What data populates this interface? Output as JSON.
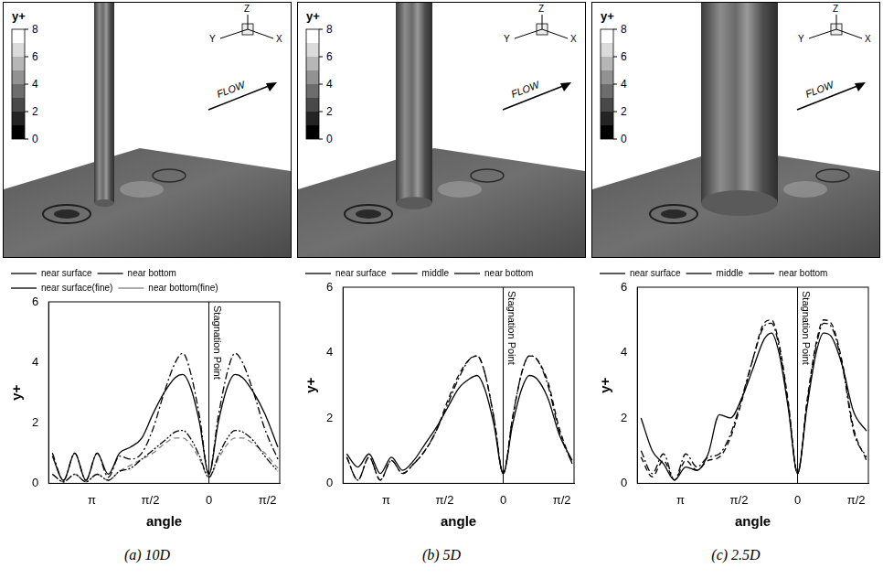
{
  "captions": [
    "(a) 10D",
    "(b) 5D",
    "(c) 2.5D"
  ],
  "contour_panels": [
    {
      "colorbar_title": "y+",
      "colorbar_range": [
        0,
        8
      ],
      "colorbar_ticks": [
        0,
        2,
        4,
        6,
        8
      ],
      "axis_labels": {
        "x": "X",
        "y": "Y",
        "z": "Z"
      },
      "flow_label": "FLOW"
    },
    {
      "colorbar_title": "y+",
      "colorbar_range": [
        0,
        8
      ],
      "colorbar_ticks": [
        0,
        2,
        4,
        6,
        8
      ],
      "axis_labels": {
        "x": "X",
        "y": "Y",
        "z": "Z"
      },
      "flow_label": "FLOW"
    },
    {
      "colorbar_title": "y+",
      "colorbar_range": [
        0,
        8
      ],
      "colorbar_ticks": [
        0,
        2,
        4,
        6,
        8
      ],
      "axis_labels": {
        "x": "X",
        "y": "Y",
        "z": "Z"
      },
      "flow_label": "FLOW"
    }
  ],
  "chart_data": [
    {
      "type": "line",
      "x_label": "angle",
      "y_label": "y+",
      "x": [
        -4.2,
        -3.9,
        -3.6,
        -3.3,
        -3.0,
        -2.7,
        -2.4,
        -2.1,
        -1.8,
        -1.5,
        -1.2,
        -0.9,
        -0.7,
        -0.5,
        -0.25,
        0,
        0.25,
        0.5,
        0.7,
        0.9,
        1.2,
        1.5,
        1.85
      ],
      "xlim": [
        -4.3,
        1.9
      ],
      "xticks": [
        {
          "value": -3.1416,
          "label": "π"
        },
        {
          "value": -1.5708,
          "label": "π/2"
        },
        0,
        {
          "value": 1.5708,
          "label": "π/2"
        }
      ],
      "ylim": [
        0,
        6
      ],
      "yticks": [
        0,
        2,
        4,
        6
      ],
      "grid": false,
      "legend": "top",
      "annotations": [
        {
          "x": 0,
          "text": "Stagnation Point"
        }
      ],
      "series": [
        {
          "name": "near surface",
          "color": "#000000",
          "line_style": "dashdot",
          "values": [
            1.0,
            0.1,
            1.0,
            0.1,
            1.0,
            0.2,
            0.9,
            0.8,
            1.0,
            1.8,
            3.0,
            4.0,
            4.3,
            3.7,
            2.2,
            0.3,
            2.2,
            3.7,
            4.3,
            4.0,
            3.0,
            1.8,
            0.8
          ]
        },
        {
          "name": "near bottom",
          "color": "#000000",
          "line_style": "solid",
          "values": [
            0.9,
            0.1,
            1.0,
            0.1,
            1.0,
            0.3,
            1.0,
            1.2,
            1.5,
            2.3,
            3.0,
            3.5,
            3.6,
            3.2,
            2.0,
            0.3,
            2.0,
            3.2,
            3.6,
            3.5,
            3.0,
            2.3,
            1.2
          ]
        },
        {
          "name": "near surface(fine)",
          "color": "#000000",
          "line_style": "dashdotdot",
          "values": [
            0.3,
            0.05,
            0.3,
            0.05,
            0.3,
            0.1,
            0.4,
            0.5,
            0.8,
            1.1,
            1.4,
            1.7,
            1.75,
            1.5,
            0.9,
            0.2,
            0.9,
            1.5,
            1.75,
            1.7,
            1.4,
            0.9,
            0.4
          ]
        },
        {
          "name": "near bottom(fine)",
          "color": "#808080",
          "line_style": "dashed",
          "values": [
            0.3,
            0.05,
            0.3,
            0.05,
            0.3,
            0.1,
            0.4,
            0.6,
            0.8,
            1.0,
            1.3,
            1.5,
            1.5,
            1.3,
            0.8,
            0.2,
            0.8,
            1.3,
            1.5,
            1.5,
            1.3,
            1.0,
            0.5
          ]
        }
      ]
    },
    {
      "type": "line",
      "x_label": "angle",
      "y_label": "y+",
      "x": [
        -4.2,
        -3.9,
        -3.6,
        -3.3,
        -3.0,
        -2.7,
        -2.4,
        -2.1,
        -1.8,
        -1.5,
        -1.2,
        -0.9,
        -0.7,
        -0.5,
        -0.25,
        0,
        0.25,
        0.5,
        0.7,
        0.9,
        1.2,
        1.5,
        1.85
      ],
      "xlim": [
        -4.3,
        1.9
      ],
      "xticks": [
        {
          "value": -3.1416,
          "label": "π"
        },
        {
          "value": -1.5708,
          "label": "π/2"
        },
        0,
        {
          "value": 1.5708,
          "label": "π/2"
        }
      ],
      "ylim": [
        0,
        6
      ],
      "yticks": [
        0,
        2,
        4,
        6
      ],
      "grid": false,
      "legend": "top",
      "annotations": [
        {
          "x": 0,
          "text": "Stagnation Point"
        }
      ],
      "series": [
        {
          "name": "near surface",
          "color": "#000000",
          "line_style": "dashdot",
          "values": [
            0.8,
            0.1,
            0.8,
            0.1,
            0.7,
            0.3,
            0.6,
            1.0,
            1.6,
            2.4,
            3.2,
            3.8,
            3.9,
            3.4,
            2.0,
            0.3,
            2.0,
            3.4,
            3.9,
            3.8,
            3.0,
            1.6,
            0.6
          ]
        },
        {
          "name": "middle",
          "color": "#000000",
          "line_style": "dashed",
          "values": [
            0.8,
            0.1,
            0.8,
            0.1,
            0.7,
            0.3,
            0.6,
            1.0,
            1.6,
            2.5,
            3.3,
            3.8,
            3.9,
            3.4,
            2.0,
            0.3,
            2.0,
            3.4,
            3.9,
            3.8,
            3.1,
            1.7,
            0.6
          ]
        },
        {
          "name": "near bottom",
          "color": "#000000",
          "line_style": "solid",
          "values": [
            0.9,
            0.5,
            0.9,
            0.3,
            0.8,
            0.4,
            0.7,
            1.2,
            1.7,
            2.3,
            2.9,
            3.2,
            3.3,
            2.9,
            1.8,
            0.3,
            1.8,
            2.9,
            3.3,
            3.2,
            2.6,
            1.5,
            0.7
          ]
        }
      ]
    },
    {
      "type": "line",
      "x_label": "angle",
      "y_label": "y+",
      "x": [
        -4.2,
        -3.9,
        -3.6,
        -3.3,
        -3.0,
        -2.7,
        -2.4,
        -2.1,
        -1.8,
        -1.5,
        -1.2,
        -0.9,
        -0.7,
        -0.5,
        -0.25,
        0,
        0.25,
        0.5,
        0.7,
        0.9,
        1.2,
        1.5,
        1.85
      ],
      "xlim": [
        -4.3,
        1.9
      ],
      "xticks": [
        {
          "value": -3.1416,
          "label": "π"
        },
        {
          "value": -1.5708,
          "label": "π/2"
        },
        0,
        {
          "value": 1.5708,
          "label": "π/2"
        }
      ],
      "ylim": [
        0,
        6
      ],
      "yticks": [
        0,
        2,
        4,
        6
      ],
      "grid": false,
      "legend": "top",
      "annotations": [
        {
          "x": 0,
          "text": "Stagnation Point"
        }
      ],
      "series": [
        {
          "name": "near surface",
          "color": "#000000",
          "line_style": "dashdot",
          "values": [
            1.0,
            0.3,
            0.9,
            0.1,
            0.9,
            0.5,
            0.8,
            0.9,
            1.5,
            2.6,
            3.8,
            4.8,
            4.9,
            4.2,
            2.4,
            0.3,
            2.4,
            4.2,
            4.9,
            4.8,
            3.6,
            1.6,
            0.8
          ]
        },
        {
          "name": "middle",
          "color": "#000000",
          "line_style": "dashed",
          "values": [
            0.8,
            0.2,
            0.7,
            0.1,
            0.7,
            0.4,
            0.7,
            0.8,
            1.4,
            2.5,
            3.8,
            4.9,
            5.0,
            4.3,
            2.5,
            0.3,
            2.5,
            4.3,
            5.0,
            4.9,
            3.7,
            1.7,
            0.7
          ]
        },
        {
          "name": "near bottom",
          "color": "#000000",
          "line_style": "solid",
          "values": [
            2.0,
            1.0,
            0.6,
            0.1,
            0.5,
            0.4,
            0.9,
            2.1,
            2.0,
            2.6,
            3.5,
            4.4,
            4.6,
            4.0,
            2.3,
            0.3,
            2.3,
            4.0,
            4.6,
            4.5,
            3.6,
            2.2,
            1.6
          ]
        }
      ]
    }
  ]
}
